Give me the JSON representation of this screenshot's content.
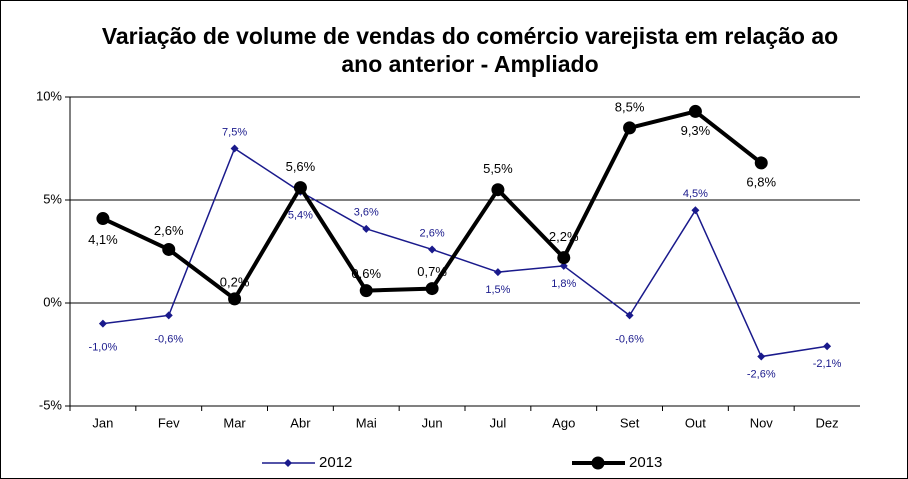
{
  "chart_data": {
    "type": "line",
    "title": "Variação de volume de vendas do comércio varejista em relação ao ano anterior - Ampliado",
    "categories": [
      "Jan",
      "Fev",
      "Mar",
      "Abr",
      "Mai",
      "Jun",
      "Jul",
      "Ago",
      "Set",
      "Out",
      "Nov",
      "Dez"
    ],
    "series": [
      {
        "name": "2012",
        "color": "#1a1a8c",
        "values": [
          -1.0,
          -0.6,
          7.5,
          5.4,
          3.6,
          2.6,
          1.5,
          1.8,
          -0.6,
          4.5,
          -2.6,
          -2.1
        ],
        "value_labels": [
          "-1,0%",
          "-0,6%",
          "7,5%",
          "5,4%",
          "3,6%",
          "2,6%",
          "1,5%",
          "1,8%",
          "-0,6%",
          "4,5%",
          "-2,6%",
          "-2,1%"
        ]
      },
      {
        "name": "2013",
        "color": "#000000",
        "values": [
          4.1,
          2.6,
          0.2,
          5.6,
          0.6,
          0.7,
          5.5,
          2.2,
          8.5,
          9.3,
          6.8,
          null
        ],
        "value_labels": [
          "4,1%",
          "2,6%",
          "0,2%",
          "5,6%",
          "0,6%",
          "0,7%",
          "5,5%",
          "2,2%",
          "8,5%",
          "9,3%",
          "6,8%",
          null
        ]
      }
    ],
    "ylim": [
      -5,
      10
    ],
    "yticks": [
      {
        "value": -5,
        "label": "-5%"
      },
      {
        "value": 0,
        "label": "0%"
      },
      {
        "value": 5,
        "label": "5%"
      },
      {
        "value": 10,
        "label": "10%"
      }
    ],
    "grid": true,
    "legend": "bottom"
  }
}
